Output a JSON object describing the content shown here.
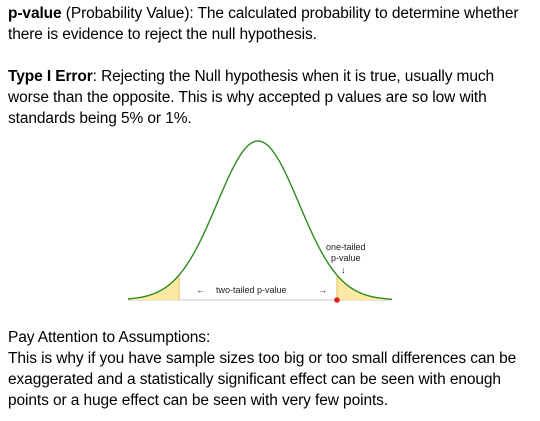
{
  "pvalue_def": {
    "term": "p-value",
    "text": " (Probability Value): The calculated probability to determine whether there is evidence to reject the null hypothesis."
  },
  "type1_def": {
    "term": "Type I Error",
    "text": ": Rejecting the Null hypothesis when it is true, usually much worse than the opposite. This is why accepted p values are so low with standards being 5% or 1%."
  },
  "figure": {
    "two_tailed_label": "two-tailed p-value",
    "one_tailed_label_line1": "one-tailed",
    "one_tailed_label_line2": "p-value",
    "left_arrow": "←",
    "right_arrow": "→",
    "down_arrow": "↓",
    "curve_color": "#2e8b1f",
    "tail_fill_color": "#fde9a3",
    "marker_color": "#e0201a"
  },
  "assumptions": {
    "heading": "Pay Attention to Assumptions:",
    "text": "This is why if you have sample sizes too big or too small differences can be exaggerated and a statistically significant effect can be seen with enough points or a huge effect can be seen with very few points."
  }
}
